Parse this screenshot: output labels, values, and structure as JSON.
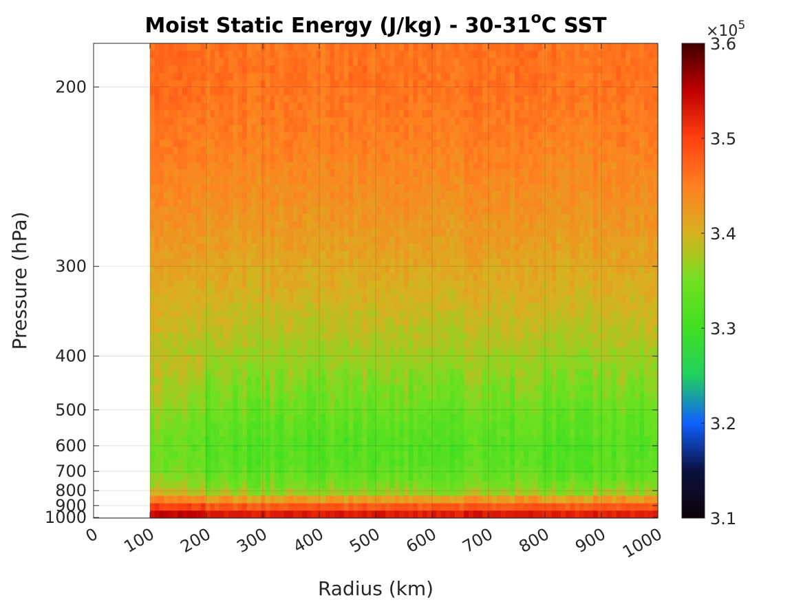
{
  "chart_data": {
    "type": "heatmap",
    "title": "Moist Static Energy (J/kg) - 30-31",
    "title_superscript": "o",
    "title_suffix": "C SST",
    "xlabel": "Radius (km)",
    "ylabel": "Pressure (hPa)",
    "x_axis": {
      "range": [
        0,
        1000
      ],
      "ticks": [
        0,
        100,
        200,
        300,
        400,
        500,
        600,
        700,
        800,
        900,
        1000
      ],
      "tick_labels": [
        "0",
        "100",
        "200",
        "300",
        "400",
        "500",
        "600",
        "700",
        "800",
        "900",
        "1000"
      ]
    },
    "y_axis": {
      "scale": "reciprocal",
      "direction": "top-to-bottom increasing pressure",
      "range": [
        185,
        1005
      ],
      "ticks": [
        200,
        300,
        400,
        500,
        600,
        700,
        800,
        900,
        1000
      ],
      "tick_labels": [
        "200",
        "300",
        "400",
        "500",
        "600",
        "700",
        "800",
        "900",
        "1000"
      ]
    },
    "grid": true,
    "colorbar": {
      "colormap": "jet-like (black-blue-green-yellow-orange-red-darkred)",
      "range": [
        3.1,
        3.6
      ],
      "ticks": [
        3.1,
        3.2,
        3.3,
        3.4,
        3.5,
        3.6
      ],
      "tick_labels": [
        "3.1",
        "3.2",
        "3.3",
        "3.4",
        "3.5",
        "3.6"
      ],
      "multiplier_base": "×10",
      "multiplier_exponent": "5",
      "colors": [
        "#0d0208",
        "#0a1040",
        "#1060ff",
        "#20d060",
        "#40e020",
        "#70e020",
        "#d8b020",
        "#ff8020",
        "#ff4010",
        "#c00000",
        "#400000"
      ]
    },
    "data_extent": {
      "radius_km": [
        100,
        1000
      ],
      "pressure_hPa": [
        185,
        1005
      ]
    },
    "vertical_profile_x1e5": [
      {
        "pressure": 200,
        "mse": 3.46
      },
      {
        "pressure": 300,
        "mse": 3.41
      },
      {
        "pressure": 400,
        "mse": 3.37
      },
      {
        "pressure": 500,
        "mse": 3.34
      },
      {
        "pressure": 600,
        "mse": 3.32
      },
      {
        "pressure": 700,
        "mse": 3.33
      },
      {
        "pressure": 800,
        "mse": 3.36
      },
      {
        "pressure": 900,
        "mse": 3.47
      },
      {
        "pressure": 1000,
        "mse": 3.55
      }
    ]
  }
}
